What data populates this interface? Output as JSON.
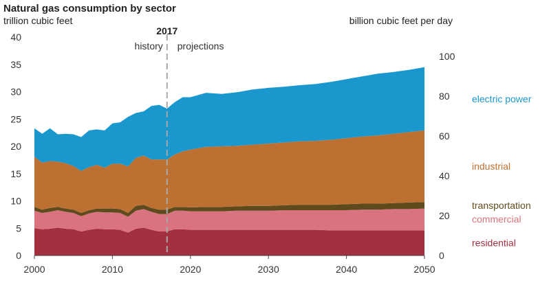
{
  "chart_data": {
    "type": "area",
    "title": "Natural gas consumption by sector",
    "ylabel": "trillion cubic feet",
    "ylabel_right": "billion cubic feet per day",
    "ylim": [
      0,
      40
    ],
    "ylim_right": [
      0,
      109.6
    ],
    "xlim": [
      2000,
      2050
    ],
    "x_ticks": [
      "2000",
      "2010",
      "2020",
      "2030",
      "2040",
      "2050"
    ],
    "y_ticks": [
      "0",
      "5",
      "10",
      "15",
      "20",
      "25",
      "30",
      "35",
      "40"
    ],
    "y_ticks_right": [
      "0",
      "20",
      "40",
      "60",
      "80",
      "100"
    ],
    "y_ticks_right_values": [
      0,
      20,
      40,
      60,
      80,
      100
    ],
    "grid": false,
    "stacked": true,
    "divider": {
      "x": 2017,
      "year_label": "2017",
      "left_label": "history",
      "right_label": "projections"
    },
    "x": [
      2000,
      2001,
      2002,
      2003,
      2004,
      2005,
      2006,
      2007,
      2008,
      2009,
      2010,
      2011,
      2012,
      2013,
      2014,
      2015,
      2016,
      2017,
      2018,
      2019,
      2020,
      2022,
      2024,
      2026,
      2028,
      2030,
      2032,
      2034,
      2036,
      2038,
      2040,
      2042,
      2044,
      2046,
      2048,
      2050
    ],
    "series": [
      {
        "name": "residential",
        "color": "#a3303f",
        "values": [
          5.0,
          4.8,
          4.9,
          5.1,
          4.9,
          4.8,
          4.4,
          4.7,
          4.9,
          4.8,
          4.8,
          4.7,
          4.2,
          4.9,
          5.1,
          4.7,
          4.4,
          4.4,
          4.8,
          4.8,
          4.7,
          4.7,
          4.7,
          4.7,
          4.7,
          4.7,
          4.7,
          4.7,
          4.7,
          4.6,
          4.6,
          4.6,
          4.6,
          4.6,
          4.6,
          4.6
        ]
      },
      {
        "name": "commercial",
        "color": "#d9737f",
        "values": [
          3.2,
          3.0,
          3.1,
          3.2,
          3.1,
          3.0,
          2.8,
          3.0,
          3.1,
          3.1,
          3.1,
          3.1,
          2.9,
          3.3,
          3.4,
          3.3,
          3.2,
          3.2,
          3.4,
          3.4,
          3.4,
          3.4,
          3.4,
          3.5,
          3.5,
          3.5,
          3.6,
          3.6,
          3.6,
          3.7,
          3.7,
          3.8,
          3.8,
          3.9,
          3.9,
          4.0
        ]
      },
      {
        "name": "transportation",
        "color": "#5e4a1c",
        "values": [
          0.7,
          0.6,
          0.7,
          0.6,
          0.6,
          0.6,
          0.6,
          0.6,
          0.6,
          0.7,
          0.7,
          0.7,
          0.7,
          0.9,
          0.8,
          0.7,
          0.8,
          0.8,
          0.7,
          0.7,
          0.7,
          0.8,
          0.8,
          0.8,
          0.9,
          0.9,
          0.9,
          1.0,
          1.0,
          1.0,
          1.1,
          1.1,
          1.1,
          1.1,
          1.2,
          1.2
        ]
      },
      {
        "name": "industrial",
        "color": "#bc7132",
        "values": [
          9.2,
          8.6,
          8.6,
          8.3,
          8.3,
          8.0,
          7.7,
          7.9,
          8.0,
          7.5,
          8.2,
          8.3,
          8.5,
          8.8,
          9.0,
          8.9,
          9.2,
          9.2,
          9.6,
          10.2,
          10.6,
          11.0,
          11.1,
          11.1,
          11.2,
          11.4,
          11.5,
          11.6,
          11.7,
          11.9,
          12.1,
          12.3,
          12.5,
          12.7,
          12.9,
          13.1
        ]
      },
      {
        "name": "electric power",
        "color": "#1a98cd",
        "values": [
          5.2,
          5.3,
          6.0,
          5.0,
          5.4,
          5.8,
          6.2,
          6.7,
          6.5,
          6.8,
          7.4,
          7.6,
          9.1,
          8.2,
          8.1,
          9.8,
          10.0,
          9.3,
          9.6,
          9.9,
          9.6,
          9.9,
          9.6,
          9.8,
          10.1,
          10.2,
          10.2,
          10.3,
          10.4,
          10.6,
          10.8,
          11.0,
          11.3,
          11.3,
          11.4,
          11.6
        ]
      }
    ],
    "labels": [
      {
        "series": "electric power",
        "text": "electric power",
        "color": "#1a98cd"
      },
      {
        "series": "industrial",
        "text": "industrial",
        "color": "#bc7132"
      },
      {
        "series": "transportation",
        "text": "transportation",
        "color": "#5e4a1c"
      },
      {
        "series": "commercial",
        "text": "commercial",
        "color": "#d9737f"
      },
      {
        "series": "residential",
        "text": "residential",
        "color": "#a3303f"
      }
    ]
  }
}
